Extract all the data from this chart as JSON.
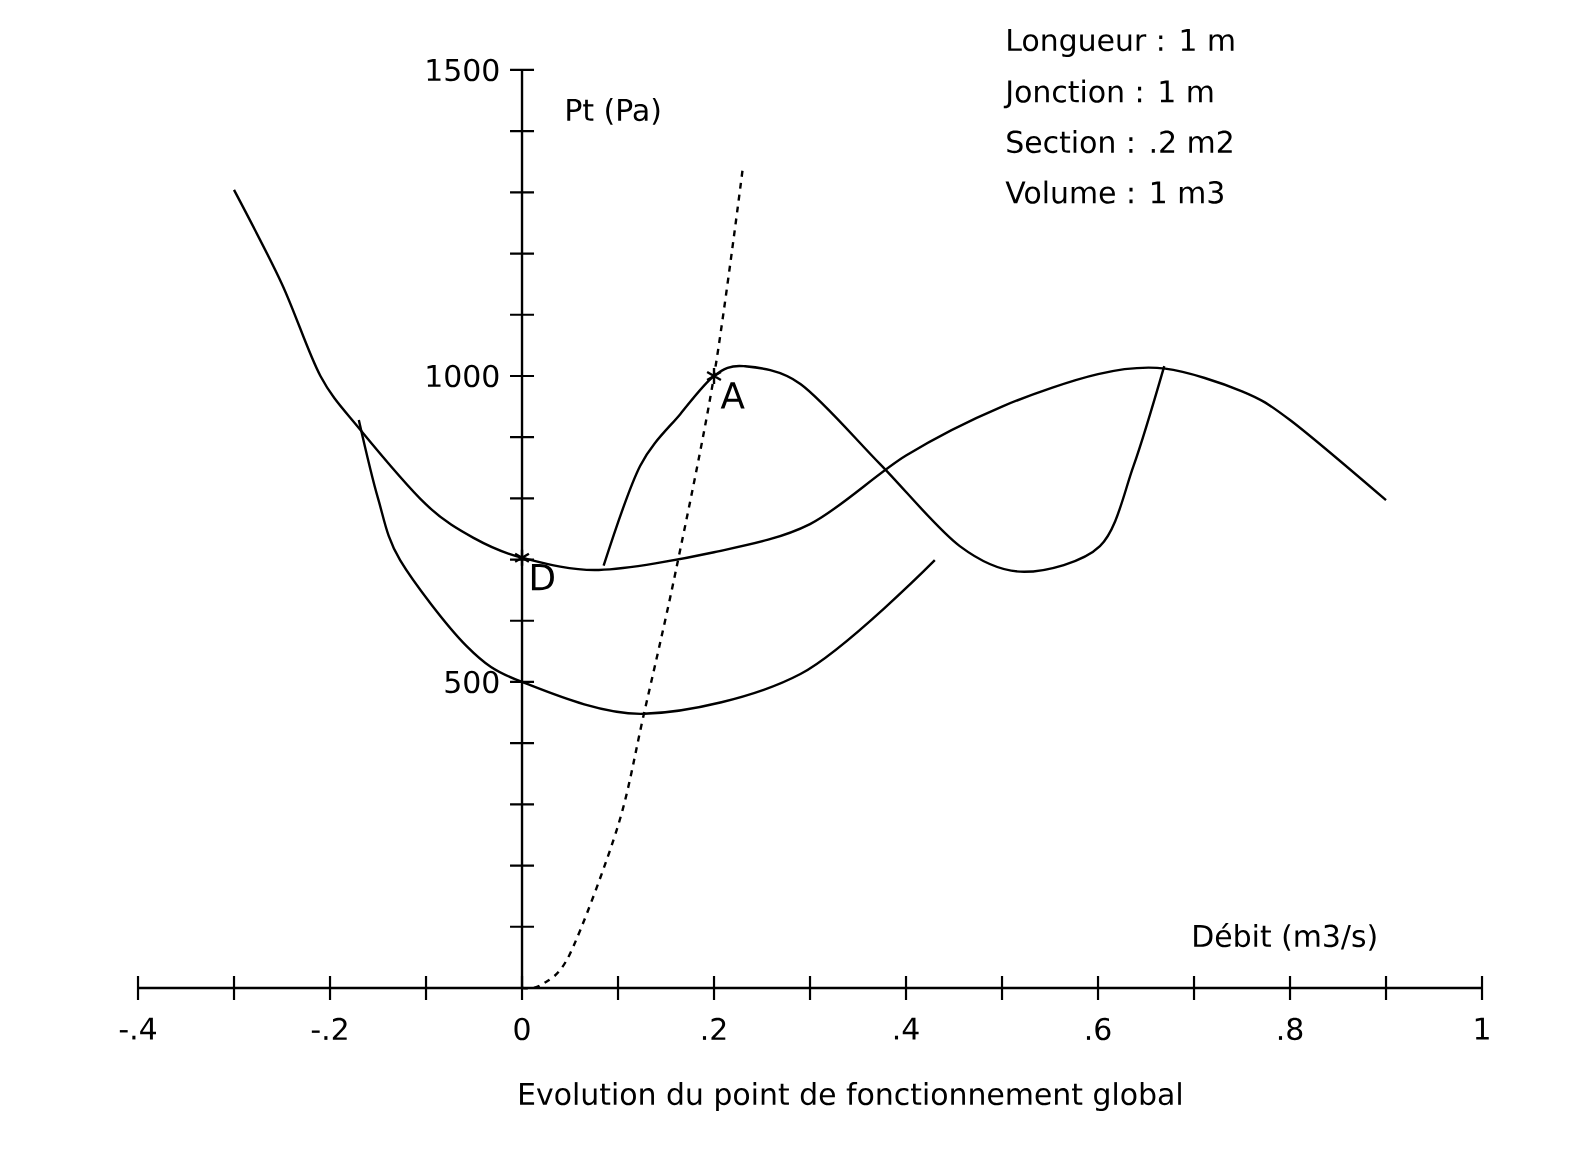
{
  "chart_data": {
    "type": "line",
    "title": "Evolution du point de fonctionnement global",
    "xlabel": "Débit (m3/s)",
    "ylabel": "Pt (Pa)",
    "xlim": [
      -0.4,
      1.0
    ],
    "ylim": [
      0,
      1500
    ],
    "xticks": [
      {
        "value": -0.4,
        "label": "-.4"
      },
      {
        "value": -0.3,
        "label": null
      },
      {
        "value": -0.2,
        "label": "-.2"
      },
      {
        "value": -0.1,
        "label": null
      },
      0,
      {
        "value": 0.1,
        "label": null
      },
      {
        "value": 0.2,
        "label": ".2"
      },
      {
        "value": 0.3,
        "label": null
      },
      {
        "value": 0.4,
        "label": ".4"
      },
      {
        "value": 0.5,
        "label": null
      },
      {
        "value": 0.6,
        "label": ".6"
      },
      {
        "value": 0.7,
        "label": null
      },
      {
        "value": 0.8,
        "label": ".8"
      },
      {
        "value": 0.9,
        "label": null
      },
      1
    ],
    "yticks": [
      {
        "value": 100,
        "label": null
      },
      {
        "value": 200,
        "label": null
      },
      {
        "value": 300,
        "label": null
      },
      {
        "value": 400,
        "label": null
      },
      500,
      {
        "value": 600,
        "label": null
      },
      {
        "value": 700,
        "label": null
      },
      {
        "value": 800,
        "label": null
      },
      {
        "value": 900,
        "label": null
      },
      1000,
      {
        "value": 1100,
        "label": null
      },
      {
        "value": 1200,
        "label": null
      },
      {
        "value": 1300,
        "label": null
      },
      {
        "value": 1400,
        "label": null
      },
      1500
    ],
    "series": [
      {
        "color": "#000000",
        "marker": "none",
        "line_style": "solid",
        "x": [
          -0.3,
          -0.25,
          -0.21,
          -0.17,
          -0.1,
          -0.05,
          0,
          0.08,
          0.2,
          0.3,
          0.4,
          0.5,
          0.6,
          0.67,
          0.75,
          0.8,
          0.9
        ],
        "values": [
          1304,
          1150,
          1000,
          915,
          790,
          735,
          703,
          683,
          712,
          758,
          870,
          950,
          1003,
          1012,
          975,
          928,
          797
        ]
      },
      {
        "color": "#000000",
        "marker": "none",
        "line_style": "dashed",
        "x": [
          0,
          0.02,
          0.05,
          0.1,
          0.127,
          0.16,
          0.2,
          0.23
        ],
        "values": [
          0,
          5,
          56,
          265,
          448,
          680,
          1000,
          1340
        ]
      },
      {
        "color": "#000000",
        "marker": "none",
        "line_style": "solid",
        "x": [
          0.085,
          0.123,
          0.165,
          0.2,
          0.231,
          0.29,
          0.373,
          0.456,
          0.523,
          0.602,
          0.637,
          0.669
        ],
        "values": [
          690,
          853,
          938,
          1000,
          1016,
          987,
          856,
          722,
          680,
          722,
          853,
          1016
        ]
      },
      {
        "color": "#000000",
        "marker": "none",
        "line_style": "solid",
        "x": [
          -0.17,
          -0.15,
          -0.127,
          -0.058,
          0,
          0.127,
          0.29,
          0.43
        ],
        "values": [
          928,
          800,
          699,
          559,
          500,
          448,
          513,
          699
        ]
      },
      {
        "type": "scatter",
        "color": "#000000",
        "marker": "cross",
        "x": [
          0,
          0.2
        ],
        "values": [
          703,
          1000
        ]
      }
    ],
    "annotations": [
      "Longueur : 1 m",
      "Jonction : 1 m",
      "Section : .2 m2",
      "Volume : 1 m3",
      {
        "text": "A",
        "x": 0.2,
        "y": 1000
      },
      {
        "text": "D",
        "x": 0,
        "y": 703
      }
    ]
  }
}
